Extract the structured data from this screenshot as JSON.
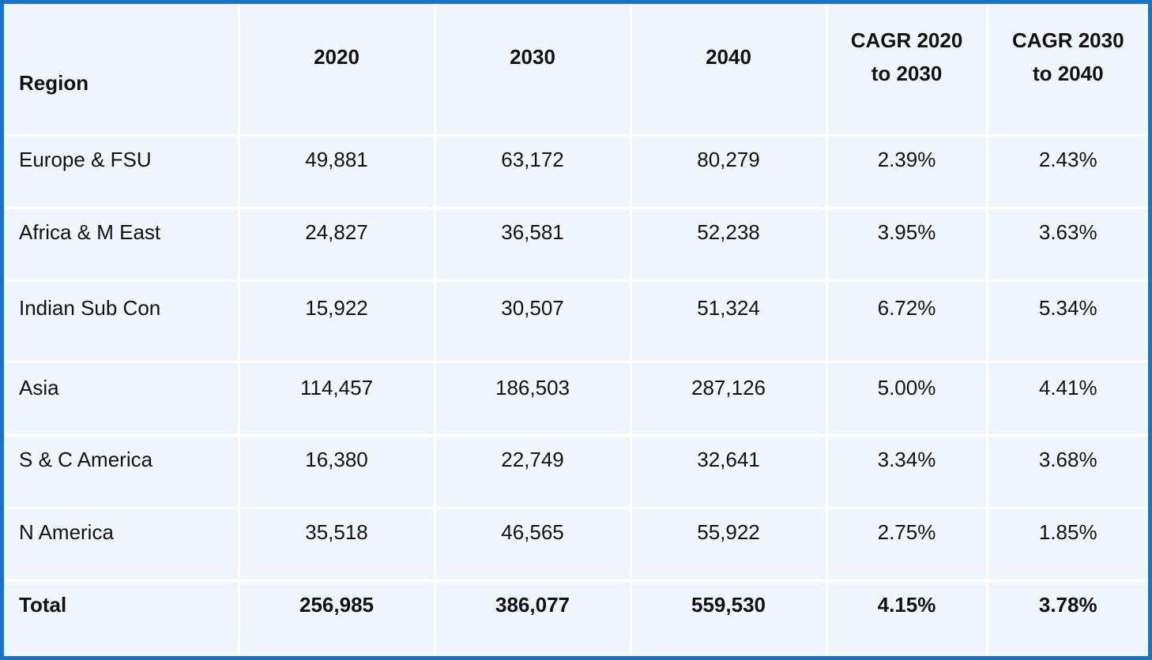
{
  "chart_data": {
    "type": "table",
    "columns": [
      "Region",
      "2020",
      "2030",
      "2040",
      "CAGR 2020 to 2030",
      "CAGR 2030 to 2040"
    ],
    "header": {
      "region": "Region",
      "y2020": "2020",
      "y2030": "2030",
      "y2040": "2040",
      "cagr1_line1": "CAGR 2020",
      "cagr1_line2": "to 2030",
      "cagr2_line1": "CAGR 2030",
      "cagr2_line2": "to 2040"
    },
    "rows": [
      {
        "region": "Europe & FSU",
        "y2020": "49,881",
        "y2030": "63,172",
        "y2040": "80,279",
        "cagr1": "2.39%",
        "cagr2": "2.43%"
      },
      {
        "region": "Africa & M East",
        "y2020": "24,827",
        "y2030": "36,581",
        "y2040": "52,238",
        "cagr1": "3.95%",
        "cagr2": "3.63%"
      },
      {
        "region": "Indian Sub Con",
        "y2020": "15,922",
        "y2030": "30,507",
        "y2040": "51,324",
        "cagr1": "6.72%",
        "cagr2": "5.34%"
      },
      {
        "region": "Asia",
        "y2020": "114,457",
        "y2030": "186,503",
        "y2040": "287,126",
        "cagr1": "5.00%",
        "cagr2": "4.41%"
      },
      {
        "region": "S & C America",
        "y2020": "16,380",
        "y2030": "22,749",
        "y2040": "32,641",
        "cagr1": "3.34%",
        "cagr2": "3.68%"
      },
      {
        "region": "N America",
        "y2020": "35,518",
        "y2030": "46,565",
        "y2040": "55,922",
        "cagr1": "2.75%",
        "cagr2": "1.85%"
      }
    ],
    "total": {
      "region": "Total",
      "y2020": "256,985",
      "y2030": "386,077",
      "y2040": "559,530",
      "cagr1": "4.15%",
      "cagr2": "3.78%"
    }
  },
  "colors": {
    "border": "#1a73c4",
    "cell_background": "#f0f6fd",
    "grid_lines": "#ffffff",
    "text": "#111111"
  }
}
